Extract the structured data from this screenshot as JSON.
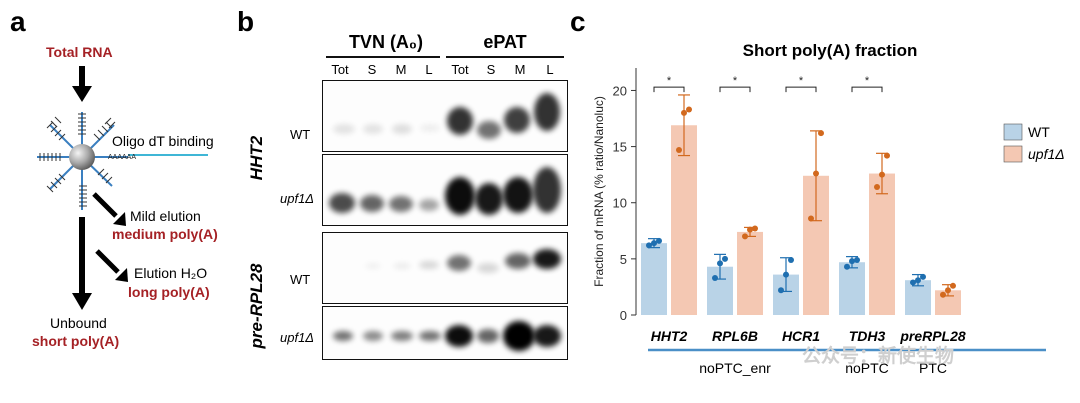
{
  "panel_a": {
    "letter": "a",
    "total_rna": "Total RNA",
    "oligo_label": "Oligo dT binding",
    "mild_elution": "Mild elution",
    "medium_polya": "medium poly(A)",
    "elution_h2o": "Elution H₂O",
    "long_polya": "long poly(A)",
    "unbound": "Unbound",
    "short_polya": "short poly(A)"
  },
  "panel_b": {
    "letter": "b",
    "group_tvn": "TVN (A₀)",
    "group_epat": "ePAT",
    "lanes": [
      "Tot",
      "S",
      "M",
      "L",
      "Tot",
      "S",
      "M",
      "L"
    ],
    "gene1": "HHT2",
    "gene2": "pre-RPL28",
    "row_wt": "WT",
    "row_upf": "upf1Δ"
  },
  "panel_c": {
    "letter": "c"
  },
  "watermark": "公众号：新使生物",
  "chart_data": {
    "type": "bar",
    "title": "Short poly(A) fraction",
    "ylabel": "Fraction of mRNA (% ratio/Nanoluc)",
    "ylim": [
      0,
      22
    ],
    "yticks": [
      0,
      5,
      10,
      15,
      20
    ],
    "categories": [
      "HHT2",
      "RPL6B",
      "HCR1",
      "TDH3",
      "preRPL28"
    ],
    "category_groups": [
      {
        "label": "noPTC_enr",
        "categories": [
          "RPL6B"
        ]
      },
      {
        "label": "noPTC",
        "categories": [
          "TDH3"
        ]
      },
      {
        "label": "PTC",
        "categories": [
          "preRPL28"
        ]
      }
    ],
    "legend_position": "right",
    "significance": [
      "*",
      "*",
      "*",
      "*",
      ""
    ],
    "series": [
      {
        "name": "WT",
        "color": "#b9d3e7",
        "point_color": "#1f6fb0",
        "values": [
          6.4,
          4.3,
          3.6,
          4.7,
          3.1
        ],
        "err": [
          0.4,
          1.1,
          1.5,
          0.5,
          0.5
        ],
        "points": [
          [
            6.2,
            6.4,
            6.6
          ],
          [
            3.3,
            4.6,
            5.0
          ],
          [
            2.2,
            3.6,
            4.9
          ],
          [
            4.3,
            4.8,
            4.9
          ],
          [
            2.9,
            3.1,
            3.4
          ]
        ]
      },
      {
        "name": "upf1Δ",
        "color": "#f4c8b3",
        "point_color": "#d2691e",
        "values": [
          16.9,
          7.4,
          12.4,
          12.6,
          2.2
        ],
        "err": [
          2.7,
          0.4,
          4.0,
          1.8,
          0.5
        ],
        "points": [
          [
            14.7,
            18.0,
            18.3
          ],
          [
            7.0,
            7.6,
            7.7
          ],
          [
            8.6,
            12.6,
            16.2
          ],
          [
            11.4,
            12.5,
            14.2
          ],
          [
            1.8,
            2.2,
            2.6
          ]
        ]
      }
    ]
  }
}
